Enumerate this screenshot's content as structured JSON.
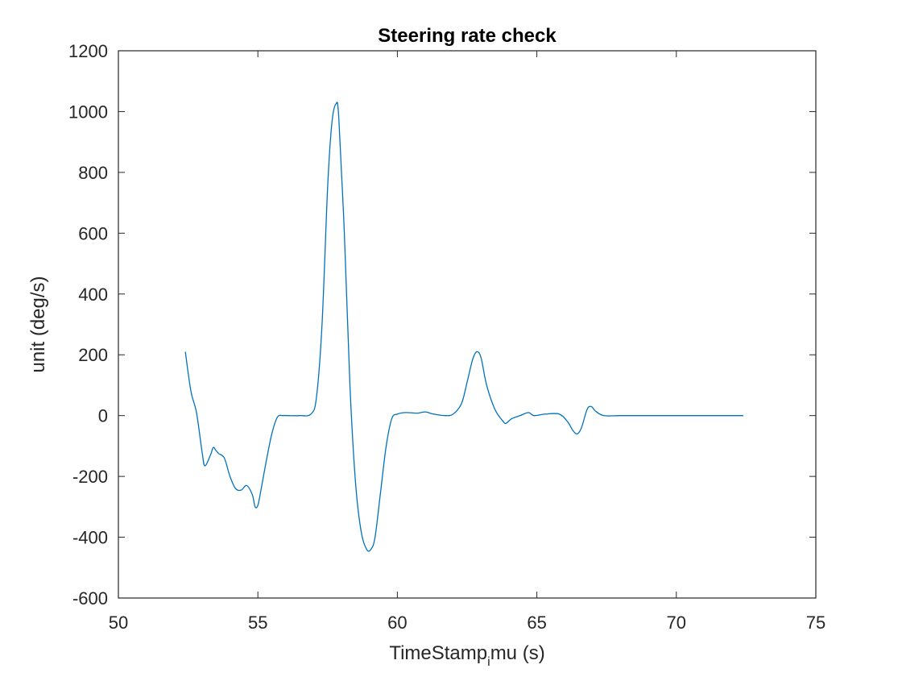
{
  "chart_data": {
    "type": "line",
    "title": "Steering rate check",
    "xlabel": {
      "main": "TimeStamp",
      "subscript": "i",
      "rest": "mu (s)"
    },
    "ylabel": "unit (deg/s)",
    "xlim": [
      50,
      75
    ],
    "ylim": [
      -600,
      1200
    ],
    "xticks": [
      50,
      55,
      60,
      65,
      70,
      75
    ],
    "yticks": [
      -600,
      -400,
      -200,
      0,
      200,
      400,
      600,
      800,
      1000,
      1200
    ],
    "xtick_labels": [
      "50",
      "55",
      "60",
      "65",
      "70",
      "75"
    ],
    "ytick_labels": [
      "-600",
      "-400",
      "-200",
      "0",
      "200",
      "400",
      "600",
      "800",
      "1000",
      "1200"
    ],
    "grid": false,
    "line_color": "#0072BD",
    "series": [
      {
        "x": [
          52.4,
          52.6,
          52.8,
          53.0,
          53.1,
          53.3,
          53.4,
          53.5,
          53.6,
          53.8,
          54.0,
          54.2,
          54.4,
          54.6,
          54.8,
          54.9,
          55.0,
          55.1,
          55.3,
          55.5,
          55.7,
          55.9,
          56.1,
          56.5,
          56.9,
          57.1,
          57.3,
          57.5,
          57.65,
          57.8,
          57.9,
          58.1,
          58.3,
          58.5,
          58.7,
          58.9,
          59.05,
          59.2,
          59.4,
          59.6,
          59.8,
          60.0,
          60.3,
          60.7,
          61.0,
          61.3,
          61.7,
          62.0,
          62.3,
          62.5,
          62.7,
          62.85,
          63.0,
          63.2,
          63.5,
          63.8,
          63.9,
          64.1,
          64.4,
          64.7,
          64.9,
          65.3,
          65.8,
          66.1,
          66.3,
          66.45,
          66.6,
          66.8,
          66.95,
          67.1,
          67.4,
          68.0,
          69.0,
          70.0,
          71.0,
          72.0,
          72.4
        ],
        "y": [
          210,
          80,
          10,
          -120,
          -165,
          -130,
          -105,
          -115,
          -125,
          -140,
          -200,
          -240,
          -245,
          -230,
          -260,
          -300,
          -295,
          -250,
          -150,
          -60,
          -5,
          0,
          0,
          0,
          5,
          60,
          300,
          750,
          960,
          1025,
          980,
          600,
          100,
          -220,
          -380,
          -440,
          -440,
          -400,
          -250,
          -100,
          -10,
          5,
          10,
          8,
          12,
          5,
          0,
          5,
          40,
          110,
          185,
          210,
          190,
          100,
          20,
          -20,
          -25,
          -10,
          0,
          10,
          0,
          5,
          5,
          -20,
          -50,
          -60,
          -40,
          20,
          30,
          15,
          0,
          0,
          0,
          0,
          0,
          0,
          0
        ]
      }
    ]
  }
}
